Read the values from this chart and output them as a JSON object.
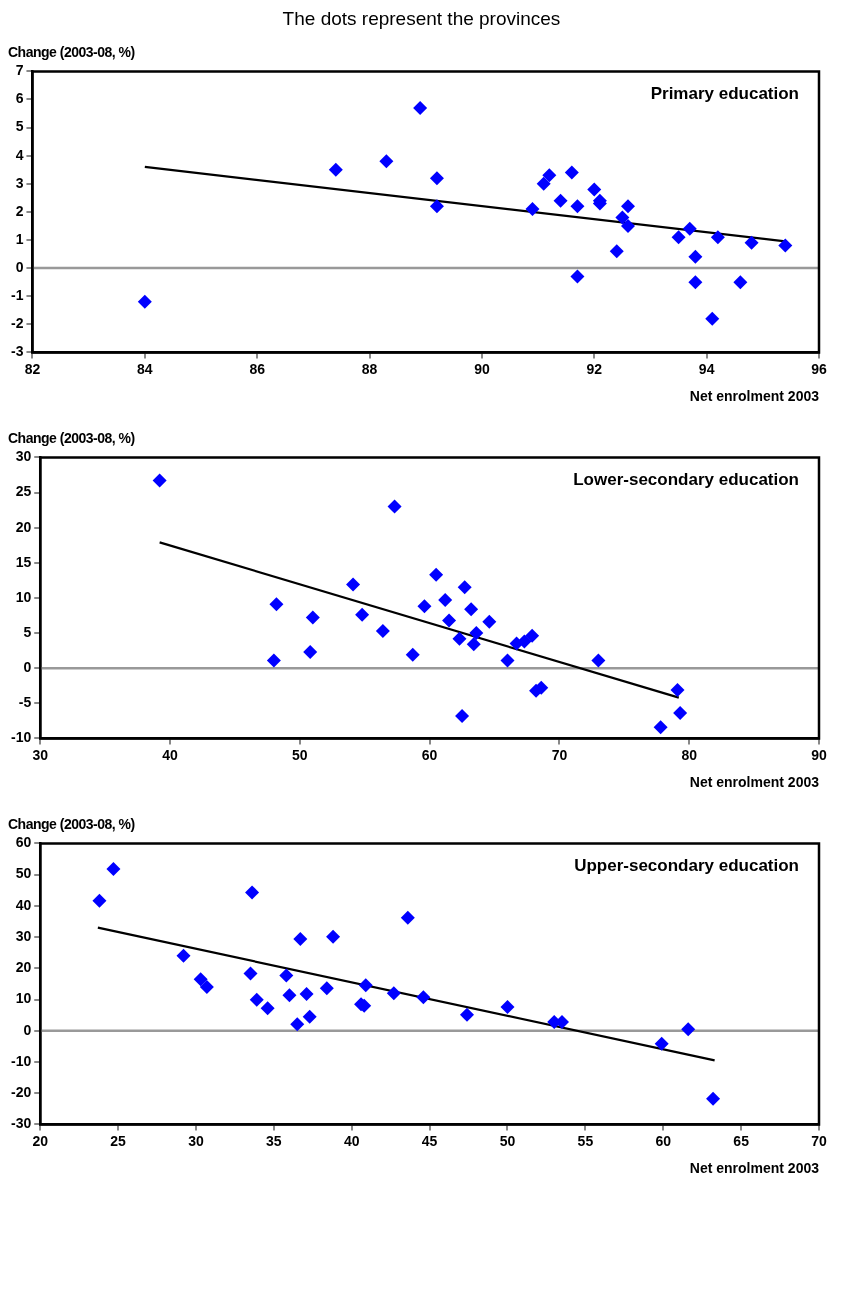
{
  "chart_data": [
    {
      "type": "scatter",
      "title": "The dots represent the provinces",
      "ylabel": "Change (2003-08, %)",
      "xlabel": "Net enrolment 2003",
      "annotations": [
        "Primary education"
      ],
      "xlim": [
        82,
        96
      ],
      "xticks": [
        82,
        84,
        86,
        88,
        90,
        92,
        94,
        96
      ],
      "ylim": [
        -3,
        7
      ],
      "yticks": [
        -3,
        -2,
        -1,
        0,
        1,
        2,
        3,
        4,
        5,
        6,
        7
      ],
      "grid": false,
      "ref_lines": [
        {
          "axis": "y",
          "value": 0,
          "color": "#999999"
        }
      ],
      "series": [
        {
          "marker": "diamond",
          "color": "#0000ff",
          "x": [
            84.0,
            87.4,
            88.3,
            88.9,
            89.2,
            89.2,
            90.9,
            91.1,
            91.2,
            91.4,
            91.6,
            91.7,
            91.7,
            92.0,
            92.1,
            92.1,
            92.4,
            92.5,
            92.6,
            92.6,
            93.5,
            93.7,
            93.8,
            93.8,
            94.1,
            94.2,
            94.6,
            94.8,
            95.4
          ],
          "values": [
            -1.2,
            3.5,
            3.8,
            5.7,
            3.2,
            2.2,
            2.1,
            3.0,
            3.3,
            2.4,
            3.4,
            2.2,
            -0.3,
            2.8,
            2.4,
            2.3,
            0.6,
            1.8,
            2.2,
            1.5,
            1.1,
            1.4,
            0.4,
            -0.5,
            -1.8,
            1.1,
            -0.5,
            0.9,
            0.8
          ]
        },
        {
          "type": "line",
          "marker": "none",
          "color": "#000000",
          "x": [
            84.0,
            95.4
          ],
          "values": [
            3.6,
            0.95
          ]
        }
      ]
    },
    {
      "type": "scatter",
      "ylabel": "Change (2003-08, %)",
      "xlabel": "Net enrolment 2003",
      "annotations": [
        "Lower-secondary education"
      ],
      "xlim": [
        30,
        90
      ],
      "xticks": [
        30,
        40,
        50,
        60,
        70,
        80,
        90
      ],
      "ylim": [
        -10,
        30
      ],
      "yticks": [
        -10,
        -5,
        0,
        5,
        10,
        15,
        20,
        25,
        30
      ],
      "grid": false,
      "ref_lines": [
        {
          "axis": "y",
          "value": 0,
          "color": "#999999"
        }
      ],
      "series": [
        {
          "marker": "diamond",
          "color": "#0000ff",
          "x": [
            39.2,
            48.0,
            48.2,
            50.8,
            51.0,
            54.1,
            54.8,
            56.4,
            57.3,
            58.7,
            59.6,
            60.5,
            61.2,
            61.5,
            62.3,
            62.5,
            62.7,
            63.2,
            63.4,
            63.6,
            64.6,
            66.0,
            66.7,
            67.3,
            67.9,
            68.2,
            68.6,
            73.0,
            77.8,
            79.1,
            79.3
          ],
          "values": [
            26.7,
            1.1,
            9.1,
            2.3,
            7.2,
            11.9,
            7.6,
            5.3,
            23.0,
            1.9,
            8.8,
            13.3,
            9.7,
            6.8,
            4.2,
            -6.8,
            11.5,
            8.4,
            3.4,
            5.0,
            6.6,
            1.1,
            3.5,
            3.8,
            4.6,
            -3.2,
            -2.8,
            1.1,
            -8.4,
            -3.1,
            -6.4
          ]
        },
        {
          "type": "line",
          "marker": "none",
          "color": "#000000",
          "x": [
            39.2,
            79.2
          ],
          "values": [
            17.9,
            -4.2
          ]
        }
      ]
    },
    {
      "type": "scatter",
      "ylabel": "Change (2003-08, %)",
      "xlabel": "Net enrolment 2003",
      "annotations": [
        "Upper-secondary education"
      ],
      "xlim": [
        20,
        70
      ],
      "xticks": [
        20,
        25,
        30,
        35,
        40,
        45,
        50,
        55,
        60,
        65,
        70
      ],
      "ylim": [
        -30,
        60
      ],
      "yticks": [
        -30,
        -20,
        -10,
        0,
        10,
        20,
        30,
        40,
        50,
        60
      ],
      "grid": false,
      "ref_lines": [
        {
          "axis": "y",
          "value": 0,
          "color": "#999999"
        }
      ],
      "series": [
        {
          "marker": "diamond",
          "color": "#0000ff",
          "x": [
            23.8,
            24.7,
            29.2,
            30.3,
            30.7,
            33.5,
            33.6,
            33.9,
            34.6,
            35.8,
            36.0,
            36.5,
            36.7,
            37.1,
            37.3,
            38.4,
            38.8,
            40.6,
            40.8,
            40.9,
            42.7,
            43.6,
            44.6,
            47.4,
            50.0,
            53.0,
            53.5,
            59.9,
            61.6,
            63.2
          ],
          "values": [
            41.6,
            51.8,
            24.0,
            16.5,
            14.0,
            18.3,
            44.3,
            9.9,
            7.2,
            17.7,
            11.4,
            2.1,
            29.4,
            11.8,
            4.5,
            13.6,
            30.1,
            8.5,
            8.0,
            14.6,
            12.0,
            36.2,
            10.7,
            5.1,
            7.6,
            2.8,
            2.8,
            -4.2,
            0.5,
            -21.8
          ]
        },
        {
          "type": "line",
          "marker": "none",
          "color": "#000000",
          "x": [
            23.7,
            63.3
          ],
          "values": [
            33.0,
            -9.5
          ]
        }
      ]
    }
  ]
}
